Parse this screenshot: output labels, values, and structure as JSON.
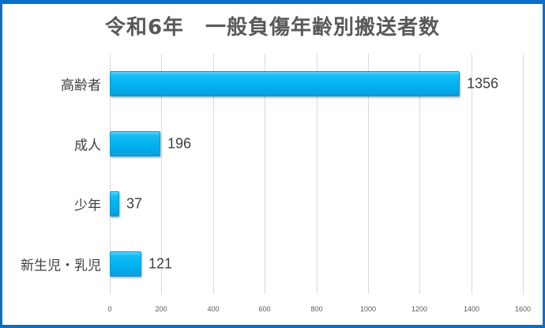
{
  "chart_data": {
    "type": "bar",
    "orientation": "horizontal",
    "title": "令和6年　一般負傷年齢別搬送者数",
    "categories": [
      "高齢者",
      "成人",
      "少年",
      "新生児・乳児"
    ],
    "values": [
      1356,
      196,
      37,
      121
    ],
    "data_labels": [
      "1356",
      "196",
      "37",
      "121"
    ],
    "xlabel": "",
    "ylabel": "",
    "xlim": [
      0,
      1600
    ],
    "x_ticks": [
      "0",
      "200",
      "400",
      "600",
      "800",
      "1000",
      "1200",
      "1400",
      "1600"
    ],
    "grid": true,
    "legend": null,
    "bar_color": "#00b0f0",
    "frame_color": "#0a6fc7"
  }
}
